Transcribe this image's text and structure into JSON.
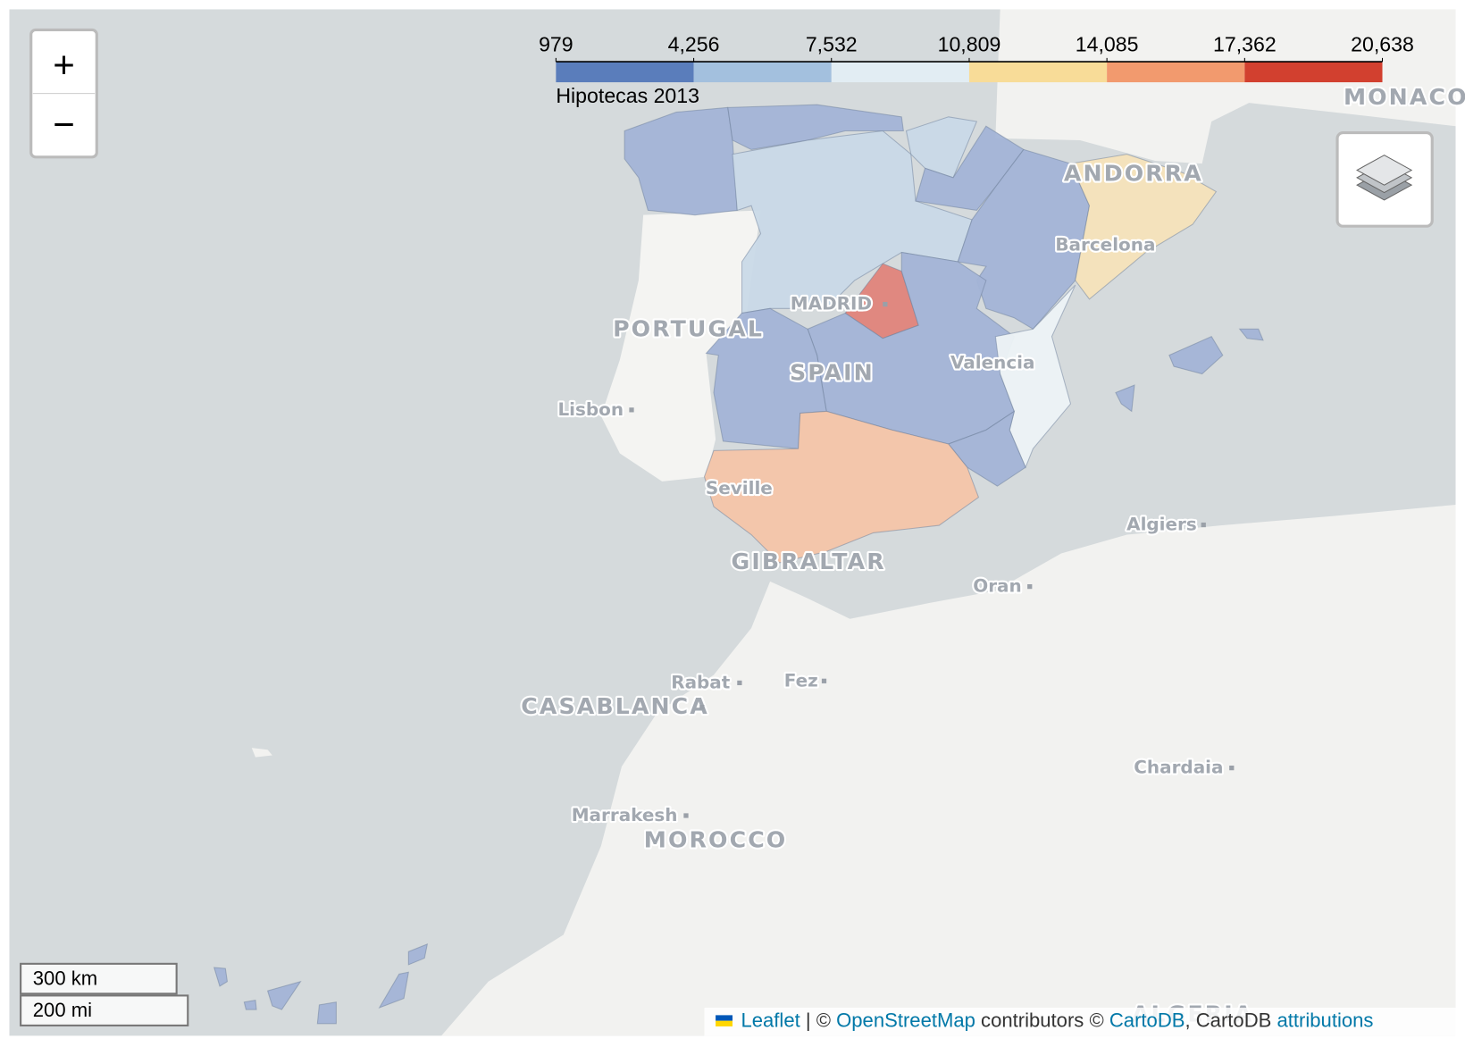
{
  "legend": {
    "title": "Hipotecas 2013",
    "ticks": [
      979,
      {
        "value": 4256,
        "label": "4,256"
      },
      {
        "value": 7532,
        "label": "7,532"
      },
      {
        "value": 10809,
        "label": "10,809"
      },
      {
        "value": 14085,
        "label": "14,085"
      },
      {
        "value": 17362,
        "label": "17,362"
      },
      {
        "value": 20638,
        "label": "20,638"
      }
    ],
    "colors": [
      "#5a7dbb",
      "#a3c0de",
      "#e2edf3",
      "#f8dc98",
      "#f29a6e",
      "#d2402f"
    ]
  },
  "regions": [
    {
      "color": "#a3b4d6"
    },
    {
      "color": "#a3b4d6"
    },
    {
      "color": "#c9d9e7"
    },
    {
      "color": "#c9d9e7"
    },
    {
      "color": "#a3b4d6"
    },
    {
      "color": "#a3b4d6"
    },
    {
      "color": "#f6e3b9"
    },
    {
      "color": "#e0847a"
    },
    {
      "color": "#a3b4d6"
    },
    {
      "color": "#a3b4d6"
    },
    {
      "color": "#edf3f6"
    },
    {
      "color": "#a3b4d6"
    },
    {
      "color": "#f4c5a8"
    },
    {
      "color": "#a3b4d6"
    },
    {
      "color": "#a3b4d6"
    }
  ],
  "labels": {
    "portugal": "PORTUGAL",
    "madrid": "MADRID",
    "spain": "SPAIN",
    "lisbon": "Lisbon",
    "valencia": "Valencia",
    "barcelona": "Barcelona",
    "andorra": "ANDORRA",
    "seville": "Seville",
    "gibraltar": "GIBRALTAR",
    "algiers": "Algiers",
    "oran": "Oran",
    "rabat": "Rabat",
    "fez": "Fez",
    "casablanca": "CASABLANCA",
    "marrakesh": "Marrakesh",
    "morocco": "MOROCCO",
    "chardaia": "Chardaia",
    "monaco": "MONACO",
    "algeria": "ALGERIA"
  },
  "zoom": {
    "in": "+",
    "out": "−"
  },
  "scale": {
    "metric": "300 km",
    "imperial": "200 mi"
  },
  "attribution": {
    "leaflet": "Leaflet",
    "sep1": " | © ",
    "osm": "OpenStreetMap",
    "mid": " contributors © ",
    "carto": "CartoDB",
    "mid2": ", CartoDB ",
    "attr": "attributions"
  }
}
